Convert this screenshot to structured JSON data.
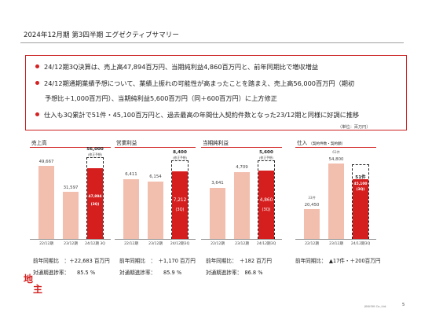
{
  "header": {
    "title": "2024年12月期 第3四半期 エグゼクティブサマリー"
  },
  "summary": {
    "bullets": [
      "24/12期3Q決算は、売上高47,894百万円、当期純利益4,860百万円と、前年同期比で増収増益",
      "24/12期通期業績予想について、業績上振れの可能性が高まったことを踏まえ、売上高56,000百万円（期初",
      "予想比＋1,000百万円）、当期純利益5,600百万円（同＋600百万円）に上方修正",
      "仕入も3Q累計で51件・45,100百万円と、過去最高の年間仕入契約件数となった23/12期と同様に好調に推移"
    ],
    "unit_note": "（単位：百万円）"
  },
  "panels": {
    "sales": {
      "title": "売上高",
      "plan_value": "56,000",
      "plan_note": "(修正予想)",
      "bars": [
        {
          "xlabel": "22/12期",
          "value": "49,667"
        },
        {
          "xlabel": "23/12期",
          "value": "31,597"
        },
        {
          "xlabel": "24/12期 3Q",
          "value": "47,894",
          "note": "(3Q)"
        }
      ],
      "yoy": "前年同期比　：＋22,683 百万円",
      "progress": "対通期進捗率：　　85.5 %"
    },
    "op_income": {
      "title": "営業利益",
      "plan_value": "8,400",
      "plan_note": "(修正予想)",
      "bars": [
        {
          "xlabel": "22/12期",
          "value": "6,411"
        },
        {
          "xlabel": "23/12期",
          "value": "6,154"
        },
        {
          "xlabel": "24/12期3Q",
          "value": "7,212",
          "note": "(3Q)"
        }
      ],
      "yoy": "前年同期比　：　＋1,170 百万円",
      "progress": "対通期進捗率：　　85.9 %"
    },
    "net_income": {
      "title": "当期純利益",
      "plan_value": "5,600",
      "plan_note": "(修正予想)",
      "bars": [
        {
          "xlabel": "22/12期",
          "value": "3,641"
        },
        {
          "xlabel": "23/12期",
          "value": "4,709"
        },
        {
          "xlabel": "24/12期3Q",
          "value": "4,860",
          "note": "(3Q)"
        }
      ],
      "yoy": "前年同期比：　＋182 百万円",
      "progress": "対通期進捗率：　86.8 %"
    },
    "purchases": {
      "title": "仕入",
      "title_note": "（契約件数・契約額）",
      "bars": [
        {
          "xlabel": "22/12期",
          "value": "20,450",
          "count": "33件"
        },
        {
          "xlabel": "23/12期",
          "value": "54,800",
          "count": "63件"
        },
        {
          "xlabel": "24/12期3Q",
          "value": "45,100",
          "count": "51件",
          "note": "(3Q)"
        }
      ],
      "yoy": "前年同期比：　▲17件・＋200百万円"
    }
  },
  "footer": {
    "logo_top": "地",
    "logo_bottom": "主",
    "company": "JINUSHI Co.,Ltd.",
    "page": "5"
  },
  "colors": {
    "accent_red": "#d51e1e",
    "pale_bar": "#f2bfae",
    "text": "#222222"
  }
}
